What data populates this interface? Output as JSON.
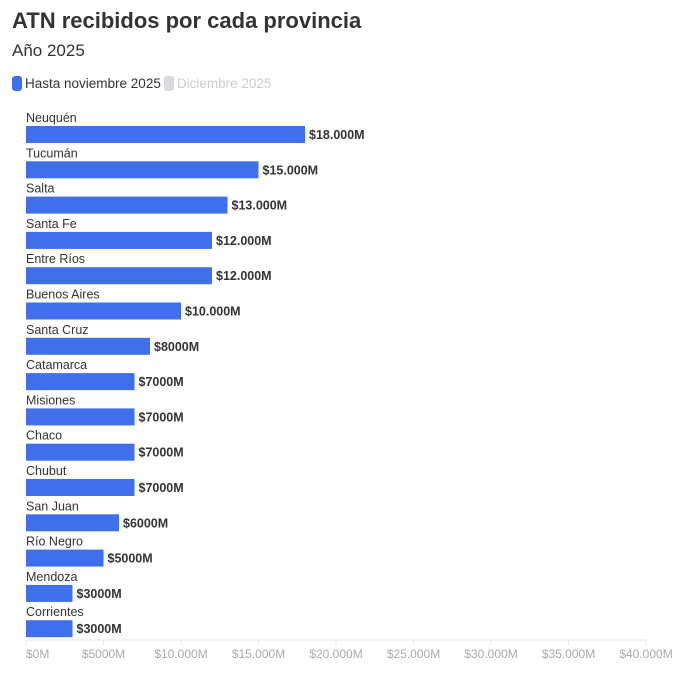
{
  "chart_data": {
    "type": "bar",
    "orientation": "horizontal",
    "title": "ATN recibidos por cada provincia",
    "subtitle": "Año 2025",
    "legend": [
      {
        "name": "Hasta noviembre 2025",
        "color": "#3f6fea"
      },
      {
        "name": "Diciembre 2025",
        "color": "#d9d9de"
      }
    ],
    "legend_text_colors": [
      "#333333",
      "#cccccc"
    ],
    "categories": [
      "Neuquén",
      "Tucumán",
      "Salta",
      "Santa Fe",
      "Entre Ríos",
      "Buenos Aires",
      "Santa Cruz",
      "Catamarca",
      "Misiones",
      "Chaco",
      "Chubut",
      "San Juan",
      "Río Negro",
      "Mendoza",
      "Corrientes"
    ],
    "series": [
      {
        "name": "Hasta noviembre 2025",
        "values": [
          18000,
          15000,
          13000,
          12000,
          12000,
          10000,
          8000,
          7000,
          7000,
          7000,
          7000,
          6000,
          5000,
          3000,
          3000
        ]
      },
      {
        "name": "Diciembre 2025",
        "values": [
          0,
          0,
          0,
          0,
          0,
          0,
          0,
          0,
          0,
          0,
          0,
          0,
          0,
          0,
          0
        ]
      }
    ],
    "data_labels": [
      "$18.000M",
      "$15.000M",
      "$13.000M",
      "$12.000M",
      "$12.000M",
      "$10.000M",
      "$8000M",
      "$7000M",
      "$7000M",
      "$7000M",
      "$7000M",
      "$6000M",
      "$5000M",
      "$3000M",
      "$3000M"
    ],
    "xlim": [
      0,
      40000
    ],
    "xticks": [
      0,
      5000,
      10000,
      15000,
      20000,
      25000,
      30000,
      35000,
      40000
    ],
    "xtick_labels": [
      "$0M",
      "$5000M",
      "$10.000M",
      "$15.000M",
      "$20.000M",
      "$25.000M",
      "$30.000M",
      "$35.000M",
      "$40.000M"
    ],
    "xlabel": "",
    "ylabel": "",
    "grid": false,
    "legend_position": "top-left"
  }
}
